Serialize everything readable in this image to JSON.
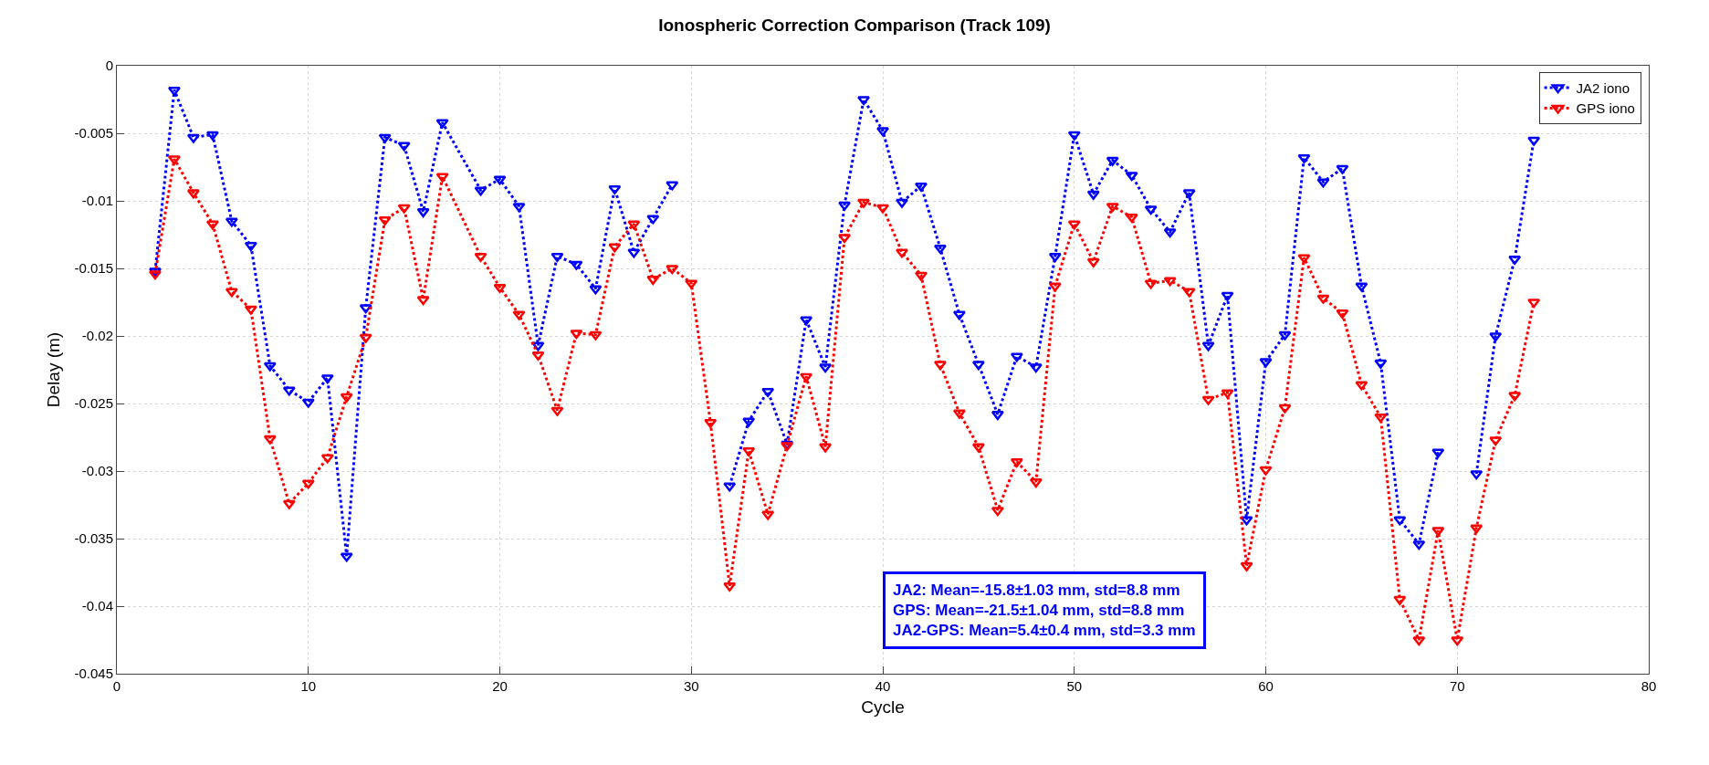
{
  "chart_data": {
    "type": "line",
    "title": "Ionospheric Correction Comparison (Track 109)",
    "xlabel": "Cycle",
    "ylabel": "Delay (m)",
    "xlim": [
      0,
      80
    ],
    "xticks": [
      0,
      10,
      20,
      30,
      40,
      50,
      60,
      70,
      80
    ],
    "ylim": [
      -0.045,
      0
    ],
    "yticks": [
      -0.045,
      -0.04,
      -0.035,
      -0.03,
      -0.025,
      -0.02,
      -0.015,
      -0.01,
      -0.005,
      0
    ],
    "grid": true,
    "legend": "top right",
    "marker": "triangle",
    "line_style": "dotted",
    "annotations": [
      "JA2: Mean=-15.8±1.03 mm, std=8.8 mm\nGPS: Mean=-21.5±1.04 mm, std=8.8 mm\nJA2-GPS: Mean=5.4±0.4 mm, std=3.3 mm"
    ],
    "series": [
      {
        "name": "JA2 iono",
        "color": "#0000ff",
        "x": [
          2,
          3,
          4,
          5,
          6,
          7,
          8,
          9,
          10,
          11,
          12,
          13,
          14,
          15,
          16,
          17,
          19,
          20,
          21,
          22,
          23,
          24,
          25,
          26,
          27,
          28,
          29,
          30,
          31,
          32,
          33,
          34,
          35,
          36,
          37,
          38,
          39,
          40,
          41,
          42,
          43,
          44,
          45,
          46,
          47,
          48,
          49,
          50,
          51,
          52,
          53,
          54,
          55,
          56,
          57,
          58,
          59,
          60,
          61,
          62,
          63,
          64,
          65,
          66,
          67,
          68,
          69,
          70,
          71,
          72,
          73,
          74
        ],
        "values": [
          -0.0152,
          -0.0018,
          -0.0053,
          -0.0051,
          -0.0115,
          -0.0133,
          -0.0222,
          -0.024,
          -0.0249,
          -0.0231,
          -0.0363,
          -0.0179,
          -0.0053,
          -0.0059,
          -0.0108,
          -0.0042,
          -0.0092,
          -0.0084,
          -0.0104,
          -0.0207,
          -0.0141,
          -0.0147,
          -0.0165,
          -0.0091,
          -0.0138,
          -0.0113,
          -0.0088,
          null,
          null,
          -0.0311,
          -0.0263,
          -0.0241,
          -0.028,
          -0.0188,
          -0.0223,
          -0.0103,
          -0.0025,
          -0.0048,
          -0.0101,
          -0.0089,
          -0.0135,
          -0.0184,
          -0.0221,
          -0.0258,
          -0.0215,
          -0.0223,
          -0.0141,
          -0.0051,
          -0.0095,
          -0.007,
          -0.0081,
          -0.0106,
          -0.0123,
          -0.0094,
          -0.0207,
          -0.017,
          -0.0336,
          -0.0219,
          -0.0199,
          -0.0068,
          -0.0086,
          -0.0076,
          -0.0163,
          -0.022,
          -0.0336,
          -0.0354,
          -0.0286,
          null,
          -0.0302,
          -0.02,
          -0.0143,
          -0.0055
        ]
      },
      {
        "name": "GPS iono",
        "color": "#ff0000",
        "x": [
          2,
          3,
          4,
          5,
          6,
          7,
          8,
          9,
          10,
          11,
          12,
          13,
          14,
          15,
          16,
          17,
          19,
          20,
          21,
          22,
          23,
          24,
          25,
          26,
          27,
          28,
          29,
          30,
          31,
          32,
          33,
          34,
          35,
          36,
          37,
          38,
          39,
          40,
          41,
          42,
          43,
          44,
          45,
          46,
          47,
          48,
          49,
          50,
          51,
          52,
          53,
          54,
          55,
          56,
          57,
          58,
          59,
          60,
          61,
          62,
          63,
          64,
          65,
          66,
          67,
          68,
          69,
          70,
          71,
          72,
          73,
          74
        ],
        "values": [
          -0.0154,
          -0.0069,
          -0.0094,
          -0.0117,
          -0.0167,
          -0.018,
          -0.0276,
          -0.0324,
          -0.0309,
          -0.029,
          -0.0245,
          -0.0201,
          -0.0114,
          -0.0105,
          -0.0173,
          -0.0082,
          -0.0141,
          -0.0164,
          -0.0184,
          -0.0214,
          -0.0255,
          -0.0198,
          -0.0199,
          -0.0134,
          -0.0117,
          -0.0158,
          -0.015,
          -0.0161,
          -0.0264,
          -0.0385,
          -0.0285,
          -0.0332,
          -0.0281,
          -0.023,
          -0.0282,
          -0.0127,
          -0.0101,
          -0.0105,
          -0.0138,
          -0.0155,
          -0.0221,
          -0.0257,
          -0.0282,
          -0.0329,
          -0.0293,
          -0.0308,
          -0.0163,
          -0.0117,
          -0.0145,
          -0.0104,
          -0.0112,
          -0.0161,
          -0.0159,
          -0.0167,
          -0.0247,
          -0.0242,
          -0.037,
          -0.0299,
          -0.0253,
          -0.0142,
          -0.0172,
          -0.0183,
          -0.0236,
          -0.026,
          -0.0395,
          -0.0425,
          -0.0344,
          -0.0425,
          -0.0342,
          -0.0277,
          -0.0244,
          -0.0175
        ]
      }
    ]
  }
}
